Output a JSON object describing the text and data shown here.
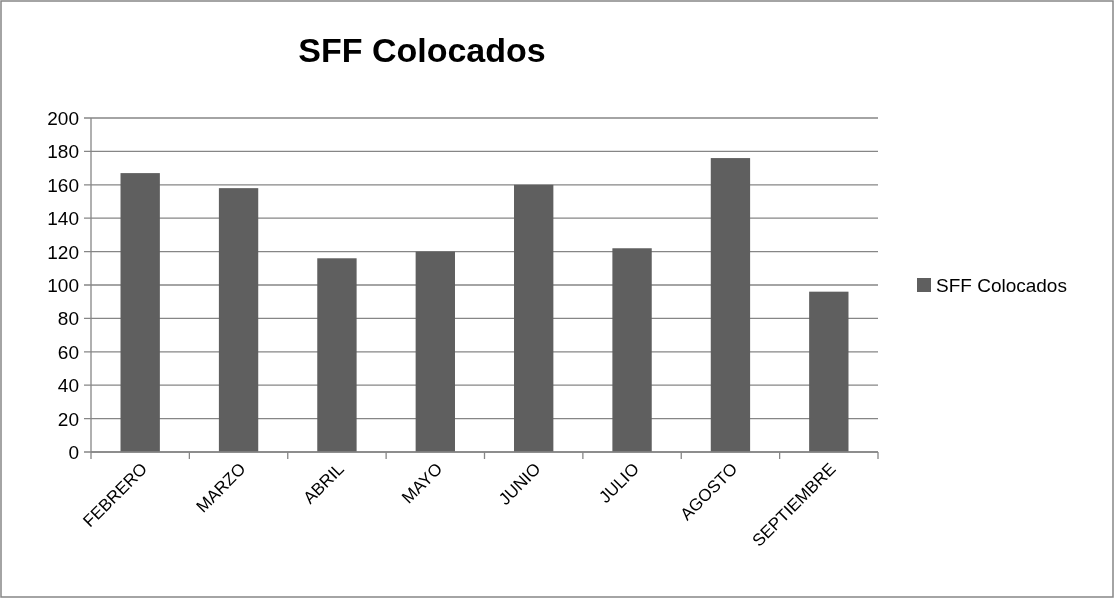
{
  "chart_data": {
    "type": "bar",
    "title": "SFF Colocados",
    "categories": [
      "FEBRERO",
      "MARZO",
      "ABRIL",
      "MAYO",
      "JUNIO",
      "JULIO",
      "AGOSTO",
      "SEPTIEMBRE"
    ],
    "series": [
      {
        "name": "SFF Colocados",
        "color": "#5f5f5f",
        "values": [
          167,
          158,
          116,
          120,
          160,
          122,
          176,
          96
        ]
      }
    ],
    "ylim": [
      0,
      200
    ],
    "yticks": [
      0,
      20,
      40,
      60,
      80,
      100,
      120,
      140,
      160,
      180,
      200
    ],
    "grid": "y",
    "legend": "right"
  }
}
